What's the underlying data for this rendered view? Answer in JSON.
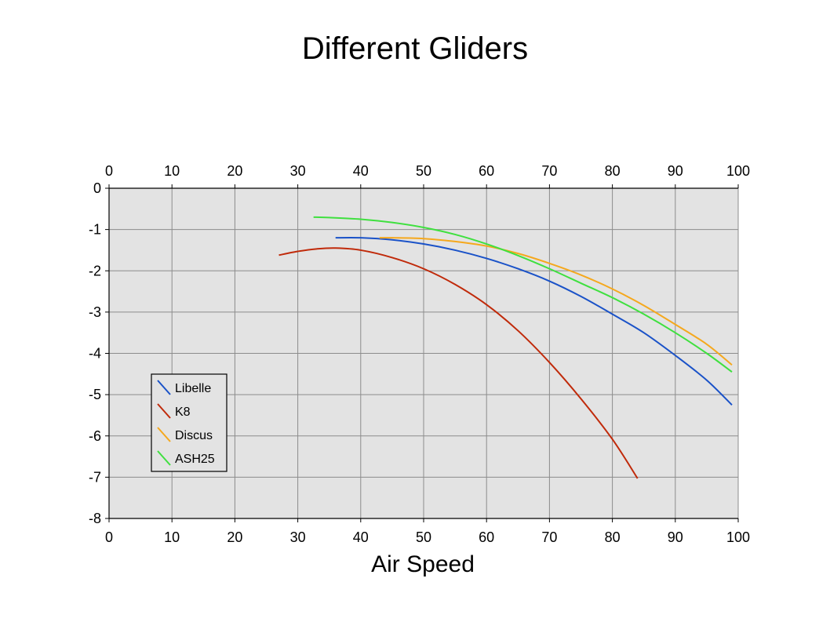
{
  "chart_data": {
    "type": "line",
    "title": "Different Gliders",
    "subtitle": "",
    "xlabel": "Air Speed",
    "ylabel": "",
    "xlim": [
      0,
      100
    ],
    "ylim": [
      -8,
      0
    ],
    "x_ticks": [
      0,
      10,
      20,
      30,
      40,
      50,
      60,
      70,
      80,
      90,
      100
    ],
    "y_ticks": [
      0,
      -1,
      -2,
      -3,
      -4,
      -5,
      -6,
      -7,
      -8
    ],
    "x_tick_labels_top": true,
    "x_tick_labels_bottom": true,
    "grid": true,
    "plot_background": "#e3e3e3",
    "legend_placement": "left",
    "series": [
      {
        "name": "Libelle",
        "color": "#1a52c8",
        "x": [
          36,
          40,
          45,
          50,
          55,
          60,
          65,
          70,
          75,
          80,
          85,
          90,
          95,
          99
        ],
        "y": [
          -1.2,
          -1.2,
          -1.25,
          -1.35,
          -1.5,
          -1.7,
          -1.95,
          -2.25,
          -2.62,
          -3.05,
          -3.5,
          -4.05,
          -4.65,
          -5.25
        ]
      },
      {
        "name": "K8",
        "color": "#c02a0a",
        "x": [
          27,
          30,
          33,
          36,
          40,
          45,
          50,
          55,
          60,
          65,
          70,
          75,
          80,
          84
        ],
        "y": [
          -1.62,
          -1.53,
          -1.47,
          -1.45,
          -1.5,
          -1.68,
          -1.95,
          -2.33,
          -2.82,
          -3.45,
          -4.22,
          -5.1,
          -6.08,
          -7.03
        ]
      },
      {
        "name": "Discus",
        "color": "#f5a81d",
        "x": [
          43,
          45,
          50,
          55,
          60,
          65,
          70,
          75,
          80,
          85,
          90,
          95,
          99
        ],
        "y": [
          -1.2,
          -1.2,
          -1.22,
          -1.29,
          -1.4,
          -1.58,
          -1.82,
          -2.1,
          -2.44,
          -2.84,
          -3.3,
          -3.78,
          -4.28
        ]
      },
      {
        "name": "ASH25",
        "color": "#3fe03f",
        "x": [
          32.5,
          35,
          40,
          45,
          50,
          55,
          60,
          65,
          70,
          75,
          80,
          85,
          90,
          95,
          99
        ],
        "y": [
          -0.7,
          -0.71,
          -0.75,
          -0.83,
          -0.95,
          -1.12,
          -1.35,
          -1.63,
          -1.95,
          -2.3,
          -2.65,
          -3.05,
          -3.5,
          -4.0,
          -4.45
        ]
      }
    ]
  }
}
